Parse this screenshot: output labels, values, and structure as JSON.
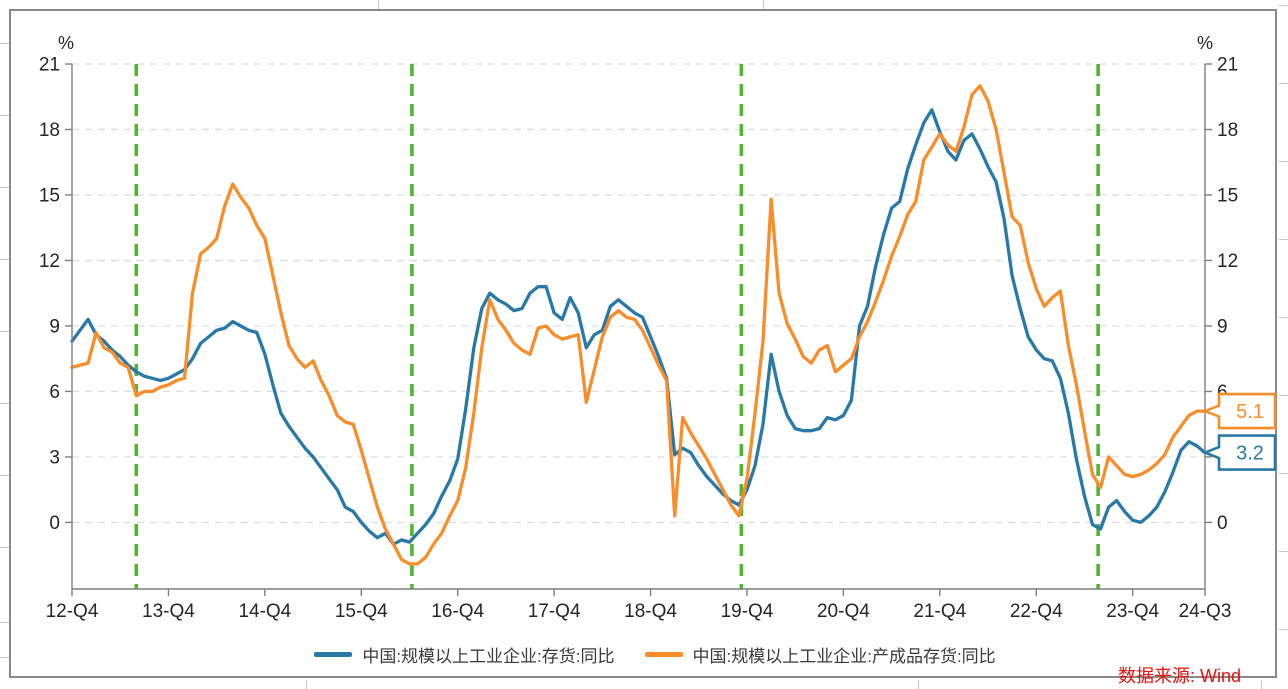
{
  "page": {
    "source_label": "数据来源: Wind",
    "source_color": "#E8100C",
    "frame_border_color": "#8A8A8A"
  },
  "legend": {
    "items": [
      {
        "label": "中国:规模以上工业企业:存货:同比",
        "color": "#2878A8"
      },
      {
        "label": "中国:规模以上工业企业:产成品存货:同比",
        "color": "#F88D2A"
      }
    ]
  },
  "callouts": [
    {
      "value": "5.1",
      "series": "finished-goods-inventory",
      "color": "#F88D2A"
    },
    {
      "value": "3.2",
      "series": "total-inventory",
      "color": "#2878A8"
    }
  ],
  "chart_data": {
    "type": "line",
    "title": "",
    "xlabel": "",
    "ylabel": "%",
    "ylabel_left": "%",
    "ylabel_right": "%",
    "x_unit": "monthly, Dec-2012 to Sep-2024",
    "ylim": [
      -3.05,
      21
    ],
    "yticks": [
      0,
      3,
      6,
      9,
      12,
      15,
      18,
      21
    ],
    "grid": "horizontal dashed",
    "legend_position": "bottom center",
    "x_tick_labels": [
      "12-Q4",
      "13-Q4",
      "14-Q4",
      "15-Q4",
      "16-Q4",
      "17-Q4",
      "18-Q4",
      "19-Q4",
      "20-Q4",
      "21-Q4",
      "22-Q4",
      "23-Q4",
      "24-Q3"
    ],
    "x_tick_month_index": [
      0,
      12,
      24,
      36,
      48,
      60,
      72,
      84,
      96,
      108,
      120,
      132,
      141
    ],
    "event_lines": {
      "color": "#53B332",
      "style": "dashed vertical",
      "month_index": [
        8.0,
        42.3,
        83.3,
        127.7
      ]
    },
    "series": [
      {
        "name": "中国:规模以上工业企业:存货:同比",
        "color": "#2878A8",
        "last_value_label": "3.2",
        "values": [
          8.3,
          8.8,
          9.3,
          8.6,
          8.3,
          7.9,
          7.6,
          7.2,
          6.9,
          6.7,
          6.6,
          6.5,
          6.6,
          6.8,
          7.0,
          7.5,
          8.2,
          8.5,
          8.8,
          8.9,
          9.2,
          9.0,
          8.8,
          8.7,
          7.7,
          6.3,
          5.0,
          4.4,
          3.9,
          3.4,
          3.0,
          2.5,
          2.0,
          1.5,
          0.7,
          0.5,
          0.0,
          -0.4,
          -0.7,
          -0.5,
          -1.0,
          -0.8,
          -0.9,
          -0.5,
          -0.1,
          0.4,
          1.2,
          1.9,
          2.9,
          5.2,
          8.0,
          9.8,
          10.5,
          10.2,
          10.0,
          9.7,
          9.8,
          10.5,
          10.8,
          10.8,
          9.6,
          9.3,
          10.3,
          9.6,
          8.0,
          8.6,
          8.8,
          9.9,
          10.2,
          9.9,
          9.6,
          9.4,
          8.5,
          7.6,
          6.6,
          3.1,
          3.4,
          3.2,
          2.6,
          2.1,
          1.7,
          1.3,
          1.0,
          0.8,
          1.5,
          2.6,
          4.5,
          7.7,
          6.0,
          4.9,
          4.3,
          4.2,
          4.2,
          4.3,
          4.8,
          4.7,
          4.9,
          5.6,
          9.0,
          9.9,
          11.7,
          13.2,
          14.4,
          14.7,
          16.2,
          17.3,
          18.3,
          18.9,
          17.9,
          17.0,
          16.6,
          17.5,
          17.8,
          17.1,
          16.3,
          15.6,
          13.9,
          11.3,
          9.8,
          8.5,
          7.9,
          7.5,
          7.4,
          6.6,
          5.0,
          2.9,
          1.2,
          -0.1,
          -0.3,
          0.7,
          1.0,
          0.5,
          0.1,
          0.0,
          0.3,
          0.7,
          1.4,
          2.3,
          3.3,
          3.7,
          3.5,
          3.2
        ]
      },
      {
        "name": "中国:规模以上工业企业:产成品存货:同比",
        "color": "#F88D2A",
        "last_value_label": "5.1",
        "values": [
          7.1,
          7.2,
          7.3,
          8.7,
          8.0,
          7.8,
          7.3,
          7.1,
          5.8,
          6.0,
          6.0,
          6.2,
          6.3,
          6.5,
          6.6,
          10.5,
          12.3,
          12.6,
          13.0,
          14.5,
          15.5,
          14.9,
          14.4,
          13.6,
          13.0,
          11.3,
          9.6,
          8.1,
          7.5,
          7.1,
          7.4,
          6.5,
          5.8,
          4.9,
          4.6,
          4.5,
          3.3,
          2.0,
          0.7,
          -0.3,
          -1.0,
          -1.7,
          -1.9,
          -1.9,
          -1.6,
          -1.0,
          -0.5,
          0.3,
          1.0,
          2.5,
          5.0,
          8.0,
          10.2,
          9.3,
          8.8,
          8.2,
          7.9,
          7.7,
          8.9,
          9.0,
          8.6,
          8.4,
          8.5,
          8.6,
          5.5,
          7.0,
          8.5,
          9.4,
          9.7,
          9.4,
          9.3,
          8.8,
          8.0,
          7.2,
          6.5,
          0.3,
          4.8,
          4.1,
          3.5,
          2.9,
          2.2,
          1.5,
          0.8,
          0.3,
          2.0,
          5.0,
          8.3,
          14.8,
          10.5,
          9.1,
          8.4,
          7.6,
          7.3,
          7.9,
          8.1,
          6.9,
          7.2,
          7.5,
          8.5,
          9.2,
          10.1,
          11.1,
          12.2,
          13.1,
          14.1,
          14.7,
          16.6,
          17.2,
          17.8,
          17.3,
          17.0,
          18.1,
          19.6,
          20.0,
          19.3,
          18.0,
          16.0,
          14.0,
          13.6,
          11.9,
          10.7,
          9.9,
          10.3,
          10.6,
          8.1,
          6.3,
          4.2,
          2.2,
          1.6,
          3.0,
          2.6,
          2.2,
          2.1,
          2.2,
          2.4,
          2.7,
          3.1,
          3.9,
          4.4,
          4.9,
          5.1,
          5.1
        ]
      }
    ]
  }
}
